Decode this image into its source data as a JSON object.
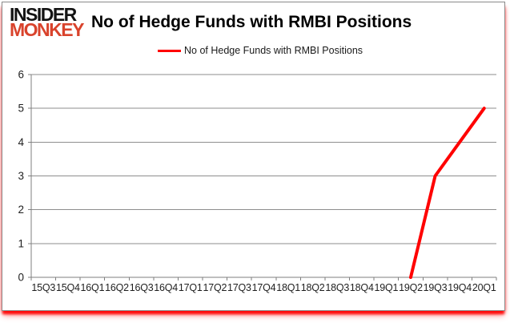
{
  "logo": {
    "line1": "INSIDER",
    "line2": "MONKEY",
    "accent_color": "#d9432c",
    "text_color": "#131313"
  },
  "header": {
    "title": "No of Hedge Funds with RMBI Positions"
  },
  "legend": {
    "items": [
      {
        "label": "No of Hedge Funds with RMBI Positions",
        "color": "#ff0000"
      }
    ]
  },
  "chart_data": {
    "type": "line",
    "title": "No of Hedge Funds with RMBI Positions",
    "categories": [
      "15Q3",
      "15Q4",
      "16Q1",
      "16Q2",
      "16Q3",
      "16Q4",
      "17Q1",
      "17Q2",
      "17Q3",
      "17Q4",
      "18Q1",
      "18Q2",
      "18Q3",
      "18Q4",
      "19Q1",
      "19Q2",
      "19Q3",
      "19Q4",
      "20Q1"
    ],
    "series": [
      {
        "name": "No of Hedge Funds with RMBI Positions",
        "color": "#ff0000",
        "values": [
          null,
          null,
          null,
          null,
          null,
          null,
          null,
          null,
          null,
          null,
          null,
          null,
          null,
          null,
          null,
          0,
          3,
          4,
          5
        ]
      }
    ],
    "ylim": [
      0,
      6
    ],
    "yticks": [
      0,
      1,
      2,
      3,
      4,
      5,
      6
    ],
    "xlabel": "",
    "ylabel": "",
    "grid": true,
    "legend_position": "top",
    "grid_color": "#8e8e8e",
    "axis_color": "#7f7f7f"
  }
}
